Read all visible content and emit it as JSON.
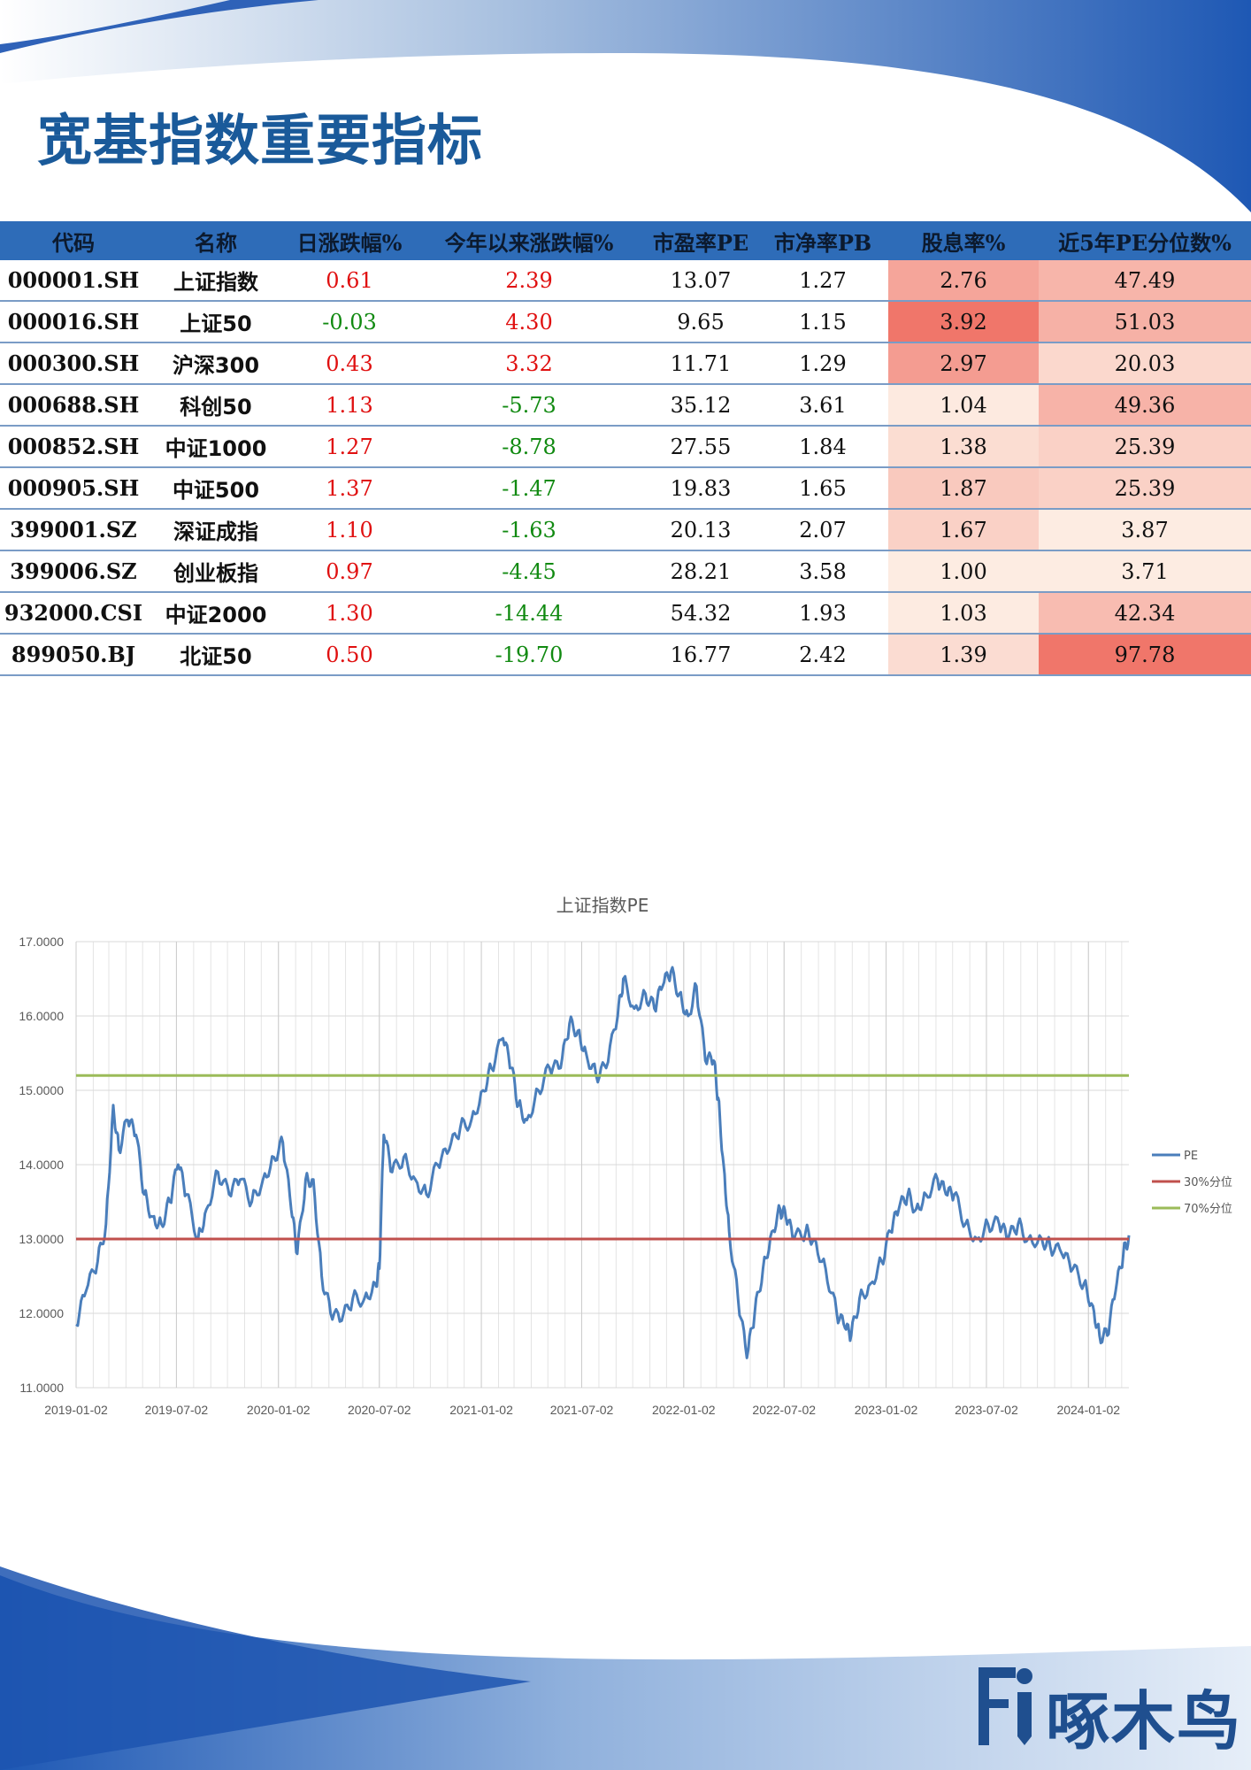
{
  "title": "宽基指数重要指标",
  "table": {
    "headers": [
      "代码",
      "名称",
      "日涨跌幅%",
      "今年以来涨跌幅%",
      "市盈率PE",
      "市净率PB",
      "股息率%",
      "近5年PE分位数%"
    ],
    "rows": [
      {
        "code": "000001.SH",
        "name": "上证指数",
        "day": "0.61",
        "ytd": "2.39",
        "pe": "13.07",
        "pb": "1.27",
        "div": "2.76",
        "pct": "47.49"
      },
      {
        "code": "000016.SH",
        "name": "上证50",
        "day": "-0.03",
        "ytd": "4.30",
        "pe": "9.65",
        "pb": "1.15",
        "div": "3.92",
        "pct": "51.03"
      },
      {
        "code": "000300.SH",
        "name": "沪深300",
        "day": "0.43",
        "ytd": "3.32",
        "pe": "11.71",
        "pb": "1.29",
        "div": "2.97",
        "pct": "20.03"
      },
      {
        "code": "000688.SH",
        "name": "科创50",
        "day": "1.13",
        "ytd": "-5.73",
        "pe": "35.12",
        "pb": "3.61",
        "div": "1.04",
        "pct": "49.36"
      },
      {
        "code": "000852.SH",
        "name": "中证1000",
        "day": "1.27",
        "ytd": "-8.78",
        "pe": "27.55",
        "pb": "1.84",
        "div": "1.38",
        "pct": "25.39"
      },
      {
        "code": "000905.SH",
        "name": "中证500",
        "day": "1.37",
        "ytd": "-1.47",
        "pe": "19.83",
        "pb": "1.65",
        "div": "1.87",
        "pct": "25.39"
      },
      {
        "code": "399001.SZ",
        "name": "深证成指",
        "day": "1.10",
        "ytd": "-1.63",
        "pe": "20.13",
        "pb": "2.07",
        "div": "1.67",
        "pct": "3.87"
      },
      {
        "code": "399006.SZ",
        "name": "创业板指",
        "day": "0.97",
        "ytd": "-4.45",
        "pe": "28.21",
        "pb": "3.58",
        "div": "1.00",
        "pct": "3.71"
      },
      {
        "code": "932000.CSI",
        "name": "中证2000",
        "day": "1.30",
        "ytd": "-14.44",
        "pe": "54.32",
        "pb": "1.93",
        "div": "1.03",
        "pct": "42.34"
      },
      {
        "code": "899050.BJ",
        "name": "北证50",
        "day": "0.50",
        "ytd": "-19.70",
        "pe": "16.77",
        "pb": "2.42",
        "div": "1.39",
        "pct": "97.78"
      }
    ]
  },
  "chart_data": {
    "type": "line",
    "title": "上证指数PE",
    "ylim": [
      11,
      17
    ],
    "y_ticks": [
      "11.0000",
      "12.0000",
      "13.0000",
      "14.0000",
      "15.0000",
      "16.0000",
      "17.0000"
    ],
    "x_ticks": [
      "2019-01-02",
      "2019-07-02",
      "2020-01-02",
      "2020-07-02",
      "2021-01-02",
      "2021-07-02",
      "2022-01-02",
      "2022-07-02",
      "2023-01-02",
      "2023-07-02",
      "2024-01-02"
    ],
    "x_range": [
      "2019-01-02",
      "2024-03-15"
    ],
    "series": [
      {
        "name": "PE",
        "color": "#4a7ebb",
        "x": [
          "2019-01-02",
          "2019-01-20",
          "2019-02-10",
          "2019-02-25",
          "2019-03-10",
          "2019-03-20",
          "2019-04-05",
          "2019-04-20",
          "2019-05-05",
          "2019-05-20",
          "2019-06-05",
          "2019-06-20",
          "2019-07-05",
          "2019-07-20",
          "2019-08-10",
          "2019-08-25",
          "2019-09-15",
          "2019-10-05",
          "2019-10-25",
          "2019-11-15",
          "2019-12-05",
          "2019-12-25",
          "2020-01-10",
          "2020-01-25",
          "2020-02-05",
          "2020-02-20",
          "2020-03-05",
          "2020-03-20",
          "2020-04-05",
          "2020-04-25",
          "2020-05-15",
          "2020-06-05",
          "2020-06-25",
          "2020-07-02",
          "2020-07-10",
          "2020-07-25",
          "2020-08-15",
          "2020-09-05",
          "2020-09-25",
          "2020-10-15",
          "2020-11-05",
          "2020-11-25",
          "2020-12-15",
          "2021-01-05",
          "2021-01-20",
          "2021-02-10",
          "2021-02-25",
          "2021-03-10",
          "2021-03-25",
          "2021-04-15",
          "2021-05-05",
          "2021-05-25",
          "2021-06-10",
          "2021-06-25",
          "2021-07-10",
          "2021-07-28",
          "2021-08-15",
          "2021-09-05",
          "2021-09-15",
          "2021-10-05",
          "2021-10-25",
          "2021-11-10",
          "2021-11-25",
          "2021-12-10",
          "2021-12-25",
          "2022-01-10",
          "2022-01-25",
          "2022-02-10",
          "2022-02-25",
          "2022-03-05",
          "2022-03-15",
          "2022-03-25",
          "2022-04-10",
          "2022-04-26",
          "2022-05-10",
          "2022-05-25",
          "2022-06-10",
          "2022-06-25",
          "2022-07-05",
          "2022-07-20",
          "2022-08-10",
          "2022-08-25",
          "2022-09-15",
          "2022-10-05",
          "2022-10-20",
          "2022-10-31",
          "2022-11-15",
          "2022-12-05",
          "2022-12-25",
          "2023-01-10",
          "2023-01-25",
          "2023-02-10",
          "2023-02-25",
          "2023-03-15",
          "2023-04-05",
          "2023-04-20",
          "2023-05-05",
          "2023-05-25",
          "2023-06-15",
          "2023-07-05",
          "2023-07-25",
          "2023-08-10",
          "2023-08-28",
          "2023-09-15",
          "2023-10-10",
          "2023-10-25",
          "2023-11-15",
          "2023-12-05",
          "2023-12-25",
          "2024-01-10",
          "2024-01-22",
          "2024-02-05",
          "2024-02-20",
          "2024-03-05",
          "2024-03-15"
        ],
        "y": [
          11.85,
          12.3,
          12.7,
          13.2,
          14.8,
          14.2,
          14.6,
          14.4,
          13.6,
          13.3,
          13.2,
          13.5,
          14.0,
          13.6,
          13.0,
          13.4,
          13.9,
          13.6,
          13.8,
          13.5,
          13.8,
          14.1,
          14.3,
          13.4,
          12.8,
          13.8,
          13.8,
          12.5,
          12.0,
          11.9,
          12.2,
          12.2,
          12.4,
          12.6,
          14.4,
          13.9,
          14.1,
          13.8,
          13.6,
          14.0,
          14.2,
          14.5,
          14.6,
          15.0,
          15.3,
          15.7,
          15.3,
          14.8,
          14.6,
          15.0,
          15.3,
          15.3,
          15.9,
          15.8,
          15.5,
          15.2,
          15.3,
          16.0,
          16.5,
          16.1,
          16.3,
          16.1,
          16.4,
          16.6,
          16.3,
          16.0,
          16.4,
          15.4,
          15.4,
          14.9,
          14.0,
          13.1,
          12.2,
          11.4,
          12.0,
          12.6,
          13.1,
          13.4,
          13.3,
          13.0,
          13.1,
          13.0,
          12.6,
          12.0,
          11.8,
          11.7,
          12.2,
          12.4,
          12.7,
          13.1,
          13.4,
          13.6,
          13.4,
          13.6,
          13.8,
          13.6,
          13.6,
          13.2,
          13.0,
          13.2,
          13.2,
          13.0,
          13.2,
          13.0,
          13.0,
          12.9,
          12.8,
          12.6,
          12.4,
          12.1,
          11.7,
          11.7,
          12.3,
          12.8,
          13.05
        ]
      },
      {
        "name": "30%分位",
        "color": "#c0504d",
        "constant": 13.0
      },
      {
        "name": "70%分位",
        "color": "#9bbb59",
        "constant": 15.2
      }
    ],
    "legend_position": "right",
    "grid": true
  },
  "logo": {
    "text": "啄木鸟"
  }
}
